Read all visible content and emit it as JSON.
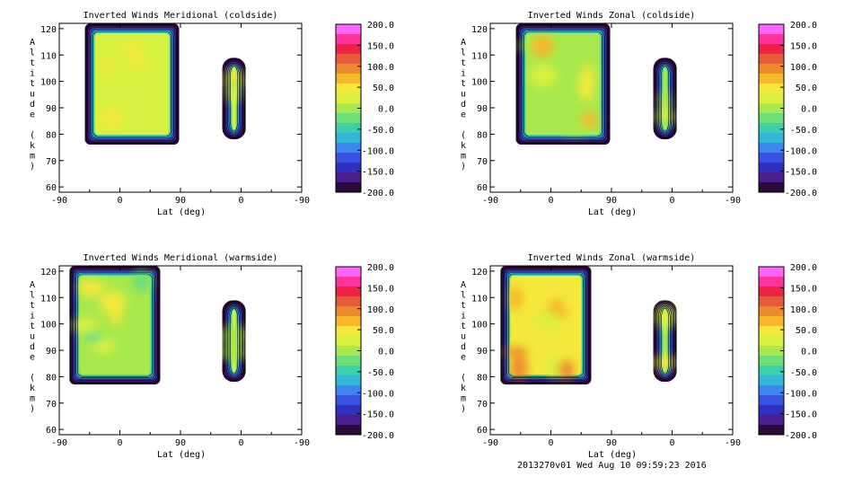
{
  "footer": "2013270v01 Wed Aug 10 09:59:23 2016",
  "colorbar": {
    "labels": [
      "200.0",
      "150.0",
      "100.0",
      "50.0",
      "0.0",
      "-50.0",
      "-100.0",
      "-150.0",
      "-200.0"
    ],
    "colors": [
      "#ff66ff",
      "#ff3399",
      "#ee2244",
      "#e65a3c",
      "#ec8a2e",
      "#f6b82a",
      "#f4e83a",
      "#d8f040",
      "#a8e84c",
      "#6ede78",
      "#3cd0a8",
      "#34b6d8",
      "#3c86ec",
      "#3a52e2",
      "#3030c0",
      "#48208e",
      "#2a0a3a"
    ]
  },
  "chart_data": [
    {
      "type": "heatmap",
      "title": "Inverted Winds Meridional (coldside)",
      "xlabel": "Lat (deg)",
      "ylabel": "Altitude (km)",
      "x_ticks": [
        "-90",
        "0",
        "90",
        "0",
        "-90"
      ],
      "y_ticks": [
        "60",
        "70",
        "80",
        "90",
        "100",
        "110",
        "120"
      ],
      "ylim": [
        58,
        122
      ],
      "z_range": [
        -200,
        200
      ],
      "regions": [
        {
          "side": "left",
          "lat_range": [
            -52,
            88
          ],
          "alt_range": [
            76,
            122
          ],
          "z_hint": [
            10,
            60
          ]
        },
        {
          "side": "right",
          "lat_range": [
            -7,
            28
          ],
          "alt_range": [
            78,
            109
          ],
          "z_hint": [
            0,
            60
          ]
        }
      ]
    },
    {
      "type": "heatmap",
      "title": "Inverted Winds Zonal (coldside)",
      "xlabel": "Lat (deg)",
      "ylabel": "Altitude (km)",
      "x_ticks": [
        "-90",
        "0",
        "90",
        "0",
        "-90"
      ],
      "y_ticks": [
        "60",
        "70",
        "80",
        "90",
        "100",
        "110",
        "120"
      ],
      "ylim": [
        58,
        122
      ],
      "z_range": [
        -200,
        200
      ],
      "regions": [
        {
          "side": "left",
          "lat_range": [
            -52,
            88
          ],
          "alt_range": [
            76,
            122
          ],
          "z_hint": [
            -30,
            70
          ]
        },
        {
          "side": "right",
          "lat_range": [
            -7,
            28
          ],
          "alt_range": [
            78,
            109
          ],
          "z_hint": [
            -30,
            80
          ]
        }
      ]
    },
    {
      "type": "heatmap",
      "title": "Inverted Winds Meridional (warmside)",
      "xlabel": "Lat (deg)",
      "ylabel": "Altitude (km)",
      "x_ticks": [
        "-90",
        "0",
        "90",
        "0",
        "-90"
      ],
      "y_ticks": [
        "60",
        "70",
        "80",
        "90",
        "100",
        "110",
        "120"
      ],
      "ylim": [
        58,
        122
      ],
      "z_range": [
        -200,
        200
      ],
      "regions": [
        {
          "side": "left",
          "lat_range": [
            -75,
            60
          ],
          "alt_range": [
            77,
            122
          ],
          "z_hint": [
            -20,
            60
          ]
        },
        {
          "side": "right",
          "lat_range": [
            -7,
            28
          ],
          "alt_range": [
            78,
            109
          ],
          "z_hint": [
            0,
            60
          ]
        }
      ]
    },
    {
      "type": "heatmap",
      "title": "Inverted Winds Zonal (warmside)",
      "xlabel": "Lat (deg)",
      "ylabel": "Altitude (km)",
      "x_ticks": [
        "-90",
        "0",
        "90",
        "0",
        "-90"
      ],
      "y_ticks": [
        "60",
        "70",
        "80",
        "90",
        "100",
        "110",
        "120"
      ],
      "ylim": [
        58,
        122
      ],
      "z_range": [
        -200,
        200
      ],
      "regions": [
        {
          "side": "left",
          "lat_range": [
            -75,
            60
          ],
          "alt_range": [
            77,
            122
          ],
          "z_hint": [
            10,
            100
          ]
        },
        {
          "side": "right",
          "lat_range": [
            -7,
            28
          ],
          "alt_range": [
            78,
            109
          ],
          "z_hint": [
            -40,
            60
          ]
        }
      ]
    }
  ]
}
